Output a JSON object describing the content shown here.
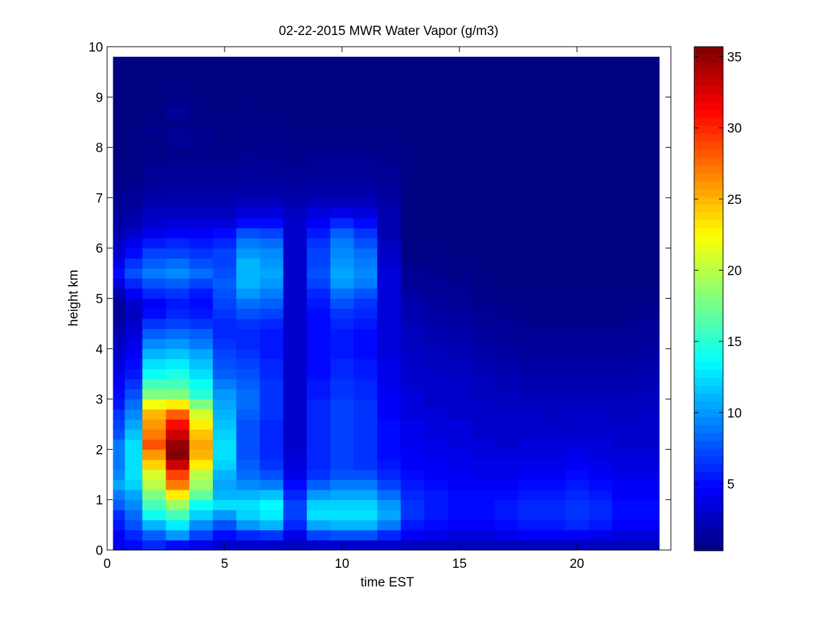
{
  "chart_data": {
    "type": "heatmap",
    "title": "02-22-2015 MWR Water Vapor (g/m3)",
    "xlabel": "time EST",
    "ylabel": "height km",
    "xlim": [
      0,
      24
    ],
    "ylim": [
      0,
      10
    ],
    "x_ticks": [
      "0",
      "5",
      "10",
      "15",
      "20"
    ],
    "y_ticks": [
      "0",
      "1",
      "2",
      "3",
      "4",
      "5",
      "6",
      "7",
      "8",
      "9",
      "10"
    ],
    "colorbar": {
      "colormap": "jet",
      "range": [
        0.3,
        35.7
      ],
      "ticks": [
        "5",
        "10",
        "15",
        "20",
        "25",
        "30",
        "35"
      ]
    },
    "hours": [
      0.5,
      1.0,
      2.0,
      3.0,
      4.0,
      5.0,
      6.0,
      7.0,
      8.0,
      9.0,
      10.0,
      11.0,
      12.0,
      13.0,
      14.0,
      15.0,
      16.0,
      17.0,
      18.0,
      19.0,
      20.0,
      21.0,
      22.0,
      23.0
    ],
    "heights_km": [
      0.1,
      0.3,
      0.5,
      0.7,
      0.9,
      1.1,
      1.3,
      1.5,
      1.7,
      1.9,
      2.1,
      2.3,
      2.5,
      2.7,
      2.9,
      3.1,
      3.3,
      3.5,
      3.7,
      3.9,
      4.1,
      4.3,
      4.5,
      4.7,
      4.9,
      5.1,
      5.3,
      5.5,
      5.7,
      5.9,
      6.1,
      6.3,
      6.5,
      6.7,
      6.9,
      7.1,
      7.3,
      7.5,
      7.7,
      7.9,
      8.1,
      8.3,
      8.5,
      8.7,
      8.9,
      9.1,
      9.3,
      9.5,
      9.7
    ],
    "values": [
      [
        4,
        4.5,
        5.5,
        6.2,
        8,
        9,
        10.5,
        9.5,
        9,
        9,
        9,
        7.5,
        7,
        6.5,
        5.5,
        5,
        4.5,
        4,
        3.5,
        3,
        2.5,
        2,
        1.5,
        1.2,
        1.2,
        2,
        3.5,
        5,
        4,
        3,
        2.5,
        2,
        1.5,
        1.2,
        1,
        0.8,
        0.6,
        0.5,
        0.4,
        0.4,
        0.4,
        0.4,
        0.4,
        0.4,
        0.4,
        0.4,
        0.4,
        0.4,
        0.4
      ],
      [
        5,
        6,
        7.5,
        8.5,
        9.5,
        10.5,
        12,
        12.5,
        12.5,
        12.5,
        12.5,
        11.5,
        10.5,
        9.5,
        8.5,
        7.5,
        6.5,
        5.5,
        5,
        4.5,
        4,
        3.5,
        3,
        2.5,
        3,
        4.5,
        6,
        7.5,
        6.5,
        5,
        4,
        3,
        2,
        1.5,
        1.2,
        1,
        0.8,
        0.6,
        0.5,
        0.5,
        0.4,
        0.4,
        0.4,
        0.4,
        0.4,
        0.4,
        0.4,
        0.4,
        0.4
      ],
      [
        6,
        8,
        11,
        14,
        16,
        18,
        20,
        21,
        24,
        26,
        28.5,
        27,
        26,
        25,
        22,
        18,
        16,
        14,
        12.5,
        11,
        9.5,
        8,
        6.5,
        5,
        4.5,
        6,
        7.5,
        9,
        8,
        7,
        5.5,
        4,
        3,
        2.5,
        2,
        1.5,
        1.2,
        1,
        0.8,
        0.6,
        0.5,
        0.8,
        0.5,
        0.4,
        0.4,
        0.4,
        0.4,
        0.4,
        0.4
      ],
      [
        5,
        10,
        13,
        16,
        19,
        23,
        27,
        29,
        33,
        35.5,
        35,
        33,
        31,
        28,
        23,
        18,
        16,
        14.5,
        13,
        11.5,
        10,
        8.5,
        7,
        6,
        5.5,
        6.5,
        8,
        9.5,
        8.5,
        7,
        6,
        4.5,
        3.5,
        2.5,
        2,
        1.6,
        1.3,
        1.1,
        0.9,
        0.7,
        1.1,
        0.9,
        0.7,
        1.3,
        0.8,
        0.5,
        0.4,
        0.4,
        0.4
      ],
      [
        4,
        7,
        9.5,
        12,
        14,
        17,
        19,
        20,
        23,
        25,
        25.5,
        24.5,
        23,
        21,
        18,
        15,
        14,
        12.5,
        11.5,
        10.5,
        9,
        8,
        6.5,
        5.5,
        5,
        5.5,
        7,
        8.5,
        7.5,
        6.5,
        5.5,
        4.5,
        3.5,
        2.5,
        2,
        1.6,
        1.3,
        1.1,
        0.9,
        0.7,
        0.9,
        0.8,
        0.6,
        0.5,
        0.4,
        0.4,
        0.4,
        0.4,
        0.4
      ],
      [
        3,
        5,
        7.5,
        10,
        12.5,
        11,
        10.5,
        11,
        12,
        12.5,
        12.5,
        12,
        11.5,
        11,
        10.5,
        10,
        9,
        8,
        7.5,
        7,
        6.5,
        6,
        6,
        6.5,
        7,
        7.5,
        8,
        7.5,
        7,
        7,
        6,
        5,
        3.5,
        2.5,
        2,
        1.6,
        1.3,
        1.1,
        0.9,
        0.7,
        0.6,
        0.5,
        0.4,
        0.4,
        0.4,
        0.4,
        0.4,
        0.4,
        0.4
      ],
      [
        3,
        6,
        10,
        12,
        12.5,
        11,
        9.5,
        8.5,
        8,
        7.5,
        7.5,
        7.5,
        7.5,
        8,
        8.5,
        8.5,
        8,
        7.5,
        7,
        6.5,
        6,
        6,
        6.5,
        7.5,
        8.5,
        10,
        11,
        11,
        11,
        10,
        9,
        7.5,
        5,
        3.5,
        2.5,
        1.8,
        1.5,
        1.3,
        1.1,
        0.9,
        0.7,
        0.6,
        0.5,
        0.5,
        0.4,
        0.4,
        0.4,
        0.4,
        0.4
      ],
      [
        3,
        6.5,
        11,
        13,
        13.5,
        11.5,
        9,
        7.5,
        6.5,
        6,
        6,
        6,
        6,
        6.5,
        6.5,
        6.5,
        6.5,
        6,
        6,
        5.5,
        5.5,
        5.5,
        6,
        7,
        8,
        9,
        10,
        10.5,
        10,
        9.5,
        8.5,
        7,
        5,
        3.5,
        2.5,
        1.8,
        1.5,
        1.2,
        1,
        0.8,
        0.7,
        0.6,
        0.5,
        0.4,
        0.4,
        0.4,
        0.4,
        0.4,
        0.4
      ],
      [
        2.5,
        4,
        6,
        7,
        7,
        6,
        5,
        4,
        3.5,
        3.2,
        3,
        3,
        3,
        3,
        3,
        3,
        3,
        3,
        3,
        3,
        3,
        3,
        3,
        3,
        3,
        3,
        3,
        3,
        3,
        3,
        3,
        3,
        3,
        2.5,
        2,
        1.6,
        1.3,
        1,
        0.8,
        0.6,
        0.5,
        0.4,
        0.4,
        0.4,
        0.4,
        0.4,
        0.4,
        0.4,
        0.4
      ],
      [
        3,
        7,
        10.5,
        12.5,
        12,
        10,
        8,
        6.5,
        6,
        6,
        6,
        6,
        6,
        6,
        6,
        5.5,
        5.5,
        5,
        5,
        5,
        5,
        5,
        5,
        5,
        5.5,
        6,
        7,
        7.5,
        7,
        7,
        6.5,
        5.5,
        4.5,
        3.5,
        2.5,
        1.8,
        1.4,
        1.2,
        1,
        0.8,
        0.6,
        0.5,
        0.4,
        0.4,
        0.4,
        0.4,
        0.4,
        0.4,
        0.4
      ],
      [
        3,
        7.5,
        11,
        12.5,
        12,
        10.5,
        9,
        7.5,
        7,
        7,
        7,
        7,
        7,
        7,
        7,
        6.5,
        6.5,
        6,
        6,
        5.5,
        5.5,
        5.5,
        6,
        6.5,
        7.5,
        8.5,
        10,
        10.5,
        10,
        9.5,
        9,
        8,
        6,
        4,
        2.5,
        1.8,
        1.4,
        1.2,
        1,
        0.8,
        0.6,
        0.5,
        0.4,
        0.4,
        0.4,
        0.4,
        0.4,
        0.4,
        0.4
      ],
      [
        3,
        7.5,
        11,
        12.5,
        12,
        10.5,
        9,
        7.5,
        6.5,
        6.5,
        6.5,
        6.5,
        6.5,
        6.5,
        6.5,
        6,
        6,
        5.5,
        5.5,
        5,
        5,
        5,
        5.5,
        6,
        6.5,
        7.5,
        9,
        9.5,
        9,
        8.5,
        7.5,
        6.5,
        5,
        3.5,
        2.5,
        1.8,
        1.4,
        1.2,
        1,
        0.8,
        0.6,
        0.5,
        0.4,
        0.4,
        0.4,
        0.4,
        0.4,
        0.4,
        0.4
      ],
      [
        3,
        6,
        9,
        10.5,
        10,
        8.5,
        7,
        6,
        5.5,
        5,
        5,
        5,
        5,
        4.5,
        4.5,
        4.5,
        4,
        4,
        4,
        3.5,
        3.5,
        3.5,
        3.5,
        3.5,
        3.5,
        3.5,
        3.5,
        3.5,
        3,
        3,
        2.5,
        2,
        2,
        2,
        1.6,
        1.4,
        1.2,
        1,
        0.8,
        0.6,
        0.5,
        0.4,
        0.4,
        0.4,
        0.4,
        0.4,
        0.4,
        0.4,
        0.4
      ],
      [
        2.5,
        4.5,
        5.5,
        6.5,
        6.5,
        6,
        5.5,
        5,
        4.5,
        4.5,
        4,
        4,
        4,
        3.5,
        3.5,
        3.5,
        3,
        3,
        3,
        2.8,
        2.5,
        2.5,
        2.2,
        2,
        1.8,
        1.5,
        1.2,
        1,
        0.8,
        0.6,
        0.5,
        0.4,
        0.4,
        0.4,
        0.4,
        0.4,
        0.4,
        0.4,
        0.4,
        0.4,
        0.4,
        0.4,
        0.4,
        0.4,
        0.4,
        0.4,
        0.4,
        0.4,
        0.4
      ],
      [
        2.5,
        4,
        5,
        5.5,
        5.5,
        5.5,
        5,
        4.5,
        4.5,
        4,
        4,
        3.5,
        3.5,
        3.5,
        3,
        3,
        3,
        2.8,
        2.5,
        2.5,
        2.2,
        2,
        1.8,
        1.6,
        1.4,
        1.2,
        1,
        0.8,
        0.6,
        0.5,
        0.4,
        0.4,
        0.4,
        0.4,
        0.4,
        0.4,
        0.4,
        0.4,
        0.4,
        0.4,
        0.4,
        0.4,
        0.4,
        0.4,
        0.4,
        0.4,
        0.4,
        0.4,
        0.4
      ],
      [
        2.5,
        3.5,
        4.5,
        5,
        5,
        5,
        4.5,
        4.5,
        4,
        4,
        3.5,
        3.5,
        3.5,
        3,
        3,
        3,
        2.8,
        2.5,
        2.5,
        2.2,
        2,
        1.8,
        1.6,
        1.4,
        1.2,
        1,
        0.8,
        0.6,
        0.5,
        0.4,
        0.4,
        0.4,
        0.4,
        0.4,
        0.4,
        0.4,
        0.4,
        0.4,
        0.4,
        0.4,
        0.4,
        0.4,
        0.4,
        0.4,
        0.4,
        0.4,
        0.4,
        0.4,
        0.4
      ],
      [
        2.5,
        3.5,
        4.5,
        5,
        5,
        5,
        4.5,
        4,
        4,
        3.5,
        3.5,
        3,
        3,
        3,
        2.8,
        2.5,
        2.5,
        2.2,
        2,
        1.8,
        1.6,
        1.4,
        1.2,
        1,
        0.8,
        0.6,
        0.5,
        0.4,
        0.4,
        0.4,
        0.4,
        0.4,
        0.4,
        0.4,
        0.4,
        0.4,
        0.4,
        0.4,
        0.4,
        0.4,
        0.4,
        0.4,
        0.4,
        0.4,
        0.4,
        0.4,
        0.4,
        0.4,
        0.4
      ],
      [
        2.5,
        4,
        5,
        5.5,
        5.5,
        5,
        4.5,
        4,
        4,
        3.5,
        3,
        3,
        3,
        2.8,
        2.5,
        2.5,
        2.2,
        2,
        1.8,
        1.6,
        1.4,
        1.2,
        1,
        0.8,
        0.6,
        0.5,
        0.4,
        0.4,
        0.4,
        0.4,
        0.4,
        0.4,
        0.4,
        0.4,
        0.4,
        0.4,
        0.4,
        0.4,
        0.4,
        0.4,
        0.4,
        0.4,
        0.4,
        0.4,
        0.4,
        0.4,
        0.4,
        0.4,
        0.4
      ],
      [
        2.5,
        4.5,
        5.5,
        6,
        6,
        5.5,
        5,
        4.5,
        4,
        3.5,
        3.5,
        3,
        3,
        2.8,
        2.5,
        2.2,
        2,
        1.8,
        1.6,
        1.4,
        1.2,
        1,
        0.8,
        0.6,
        0.5,
        0.4,
        0.4,
        0.4,
        0.4,
        0.4,
        0.4,
        0.4,
        0.4,
        0.4,
        0.4,
        0.4,
        0.4,
        0.4,
        0.4,
        0.4,
        0.4,
        0.4,
        0.4,
        0.4,
        0.4,
        0.4,
        0.4,
        0.4,
        0.4
      ],
      [
        2.5,
        4.5,
        5.5,
        6,
        6,
        5.5,
        5,
        4.5,
        4,
        3.5,
        3.5,
        3,
        2.8,
        2.5,
        2.5,
        2.2,
        2,
        1.8,
        1.6,
        1.4,
        1.2,
        1,
        0.8,
        0.6,
        0.5,
        0.4,
        0.4,
        0.4,
        0.4,
        0.4,
        0.4,
        0.4,
        0.4,
        0.4,
        0.4,
        0.4,
        0.4,
        0.4,
        0.4,
        0.4,
        0.4,
        0.4,
        0.4,
        0.4,
        0.4,
        0.4,
        0.4,
        0.4,
        0.4
      ],
      [
        2.5,
        4.5,
        6,
        6.5,
        6.5,
        6,
        5.5,
        5,
        4.5,
        4,
        3.5,
        3,
        3,
        2.8,
        2.5,
        2.2,
        2,
        1.8,
        1.6,
        1.4,
        1.2,
        1,
        0.8,
        0.6,
        0.5,
        0.4,
        0.4,
        0.4,
        0.4,
        0.4,
        0.4,
        0.4,
        0.4,
        0.4,
        0.4,
        0.4,
        0.4,
        0.4,
        0.4,
        0.4,
        0.4,
        0.4,
        0.4,
        0.4,
        0.4,
        0.4,
        0.4,
        0.4,
        0.4
      ],
      [
        2.5,
        4,
        5.5,
        6,
        6,
        5.5,
        5,
        4.5,
        4,
        3.5,
        3.5,
        3,
        3,
        2.8,
        2.5,
        2.2,
        2,
        1.8,
        1.6,
        1.4,
        1.2,
        1,
        0.8,
        0.6,
        0.5,
        0.4,
        0.4,
        0.4,
        0.4,
        0.4,
        0.4,
        0.4,
        0.4,
        0.4,
        0.4,
        0.4,
        0.4,
        0.4,
        0.4,
        0.4,
        0.4,
        0.4,
        0.4,
        0.4,
        0.4,
        0.4,
        0.4,
        0.4,
        0.4
      ],
      [
        2.5,
        3.5,
        4.5,
        5,
        5,
        4.5,
        4.5,
        4,
        3.5,
        3.5,
        3,
        3,
        2.8,
        2.5,
        2.5,
        2.2,
        2,
        1.8,
        1.6,
        1.4,
        1.2,
        1,
        0.8,
        0.6,
        0.5,
        0.4,
        0.4,
        0.4,
        0.4,
        0.4,
        0.4,
        0.4,
        0.4,
        0.4,
        0.4,
        0.4,
        0.4,
        0.4,
        0.4,
        0.4,
        0.4,
        0.4,
        0.4,
        0.4,
        0.4,
        0.4,
        0.4,
        0.4,
        0.4
      ],
      [
        2.5,
        3.5,
        4.5,
        5,
        5,
        4.5,
        4.5,
        4,
        3.5,
        3.5,
        3,
        3,
        3,
        2.8,
        2.5,
        2.5,
        2.2,
        2,
        1.8,
        1.6,
        1.4,
        1.2,
        1,
        0.8,
        0.6,
        0.5,
        0.4,
        0.4,
        0.4,
        0.4,
        0.4,
        0.4,
        0.4,
        0.4,
        0.4,
        0.4,
        0.4,
        0.4,
        0.4,
        0.4,
        0.4,
        0.4,
        0.4,
        0.4,
        0.4,
        0.4,
        0.4,
        0.4,
        0.4
      ]
    ]
  }
}
